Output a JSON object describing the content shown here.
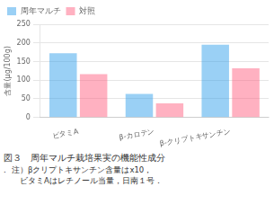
{
  "chart_data": {
    "type": "bar",
    "categories": [
      "ビタミA",
      "β-カロテン",
      "β-クリプトキサンチン"
    ],
    "series": [
      {
        "name": "周年マルチ",
        "values": [
          172,
          63,
          195
        ]
      },
      {
        "name": "対照",
        "values": [
          116,
          38,
          132
        ]
      }
    ],
    "y_label": "含量(μg/100g)",
    "ylim": [
      0,
      250
    ],
    "yticks": [
      0,
      50,
      100,
      150,
      200,
      250
    ],
    "grid": "y",
    "legend": "upper left",
    "annotations": [
      "図３　周年マルチ栽培果実の機能性成分",
      ".",
      "注）βクリプトキサンチン含量はx10，",
      "　ビタミAはレチノール当量，日南１号．"
    ]
  }
}
